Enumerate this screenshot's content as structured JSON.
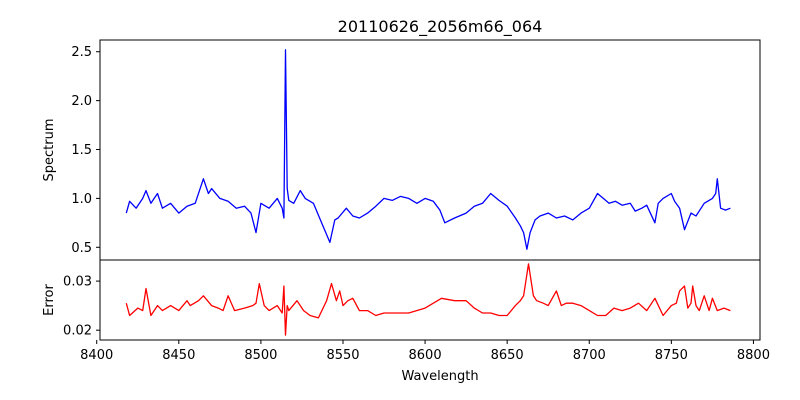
{
  "chart_data": [
    {
      "type": "line",
      "title": "20110626_2056m66_064",
      "xlabel": "",
      "ylabel": "Spectrum",
      "xlim": [
        8402,
        8804
      ],
      "ylim": [
        0.37,
        2.62
      ],
      "yticks": [
        0.5,
        1.0,
        1.5,
        2.0,
        2.5
      ],
      "ytick_labels": [
        "0.5",
        "1.0",
        "1.5",
        "2.0",
        "2.5"
      ],
      "series": [
        {
          "name": "Spectrum",
          "color": "#0000ff",
          "x": [
            8418,
            8420,
            8424,
            8428,
            8430,
            8433,
            8437,
            8440,
            8445,
            8450,
            8455,
            8460,
            8465,
            8468,
            8470,
            8475,
            8480,
            8485,
            8490,
            8494,
            8497,
            8500,
            8505,
            8510,
            8513,
            8514,
            8515,
            8516,
            8517,
            8520,
            8524,
            8527,
            8532,
            8537,
            8542,
            8545,
            8547,
            8552,
            8556,
            8560,
            8565,
            8570,
            8575,
            8580,
            8585,
            8590,
            8595,
            8600,
            8605,
            8609,
            8612,
            8618,
            8625,
            8630,
            8635,
            8640,
            8645,
            8650,
            8655,
            8658,
            8660,
            8662,
            8664,
            8667,
            8670,
            8675,
            8680,
            8685,
            8690,
            8695,
            8700,
            8705,
            8710,
            8712,
            8716,
            8720,
            8725,
            8728,
            8732,
            8735,
            8740,
            8742,
            8745,
            8750,
            8752,
            8755,
            8758,
            8762,
            8765,
            8770,
            8775,
            8777,
            8778,
            8780,
            8783,
            8786
          ],
          "y": [
            0.85,
            0.97,
            0.9,
            1.0,
            1.08,
            0.95,
            1.05,
            0.9,
            0.95,
            0.85,
            0.92,
            0.95,
            1.2,
            1.05,
            1.1,
            1.0,
            0.97,
            0.9,
            0.92,
            0.85,
            0.65,
            0.95,
            0.9,
            1.0,
            0.9,
            0.8,
            2.52,
            1.1,
            0.98,
            0.95,
            1.08,
            1.0,
            0.95,
            0.75,
            0.55,
            0.78,
            0.8,
            0.9,
            0.82,
            0.8,
            0.85,
            0.92,
            1.0,
            0.98,
            1.02,
            1.0,
            0.95,
            1.0,
            0.97,
            0.88,
            0.75,
            0.8,
            0.85,
            0.92,
            0.95,
            1.05,
            0.98,
            0.92,
            0.8,
            0.72,
            0.65,
            0.48,
            0.65,
            0.78,
            0.82,
            0.85,
            0.8,
            0.82,
            0.78,
            0.85,
            0.9,
            1.05,
            0.98,
            0.95,
            0.97,
            0.93,
            0.95,
            0.87,
            0.9,
            0.93,
            0.75,
            0.95,
            1.0,
            1.05,
            0.97,
            0.9,
            0.68,
            0.85,
            0.82,
            0.95,
            1.0,
            1.05,
            1.2,
            0.9,
            0.88,
            0.9
          ]
        }
      ]
    },
    {
      "type": "line",
      "xlabel": "Wavelength",
      "ylabel": "Error",
      "xlim": [
        8402,
        8804
      ],
      "ylim": [
        0.018,
        0.0343
      ],
      "xticks": [
        8400,
        8450,
        8500,
        8550,
        8600,
        8650,
        8700,
        8750,
        8800
      ],
      "xtick_labels": [
        "8400",
        "8450",
        "8500",
        "8550",
        "8600",
        "8650",
        "8700",
        "8750",
        "8800"
      ],
      "yticks": [
        0.02,
        0.03
      ],
      "ytick_labels": [
        "0.02",
        "0.03"
      ],
      "series": [
        {
          "name": "Error",
          "color": "#ff0000",
          "x": [
            8418,
            8420,
            8425,
            8428,
            8430,
            8433,
            8437,
            8440,
            8445,
            8450,
            8455,
            8457,
            8462,
            8465,
            8470,
            8474,
            8477,
            8480,
            8484,
            8490,
            8495,
            8497,
            8499,
            8502,
            8505,
            8510,
            8513,
            8514,
            8515,
            8516,
            8517,
            8522,
            8526,
            8530,
            8535,
            8540,
            8543,
            8546,
            8548,
            8550,
            8553,
            8556,
            8560,
            8565,
            8570,
            8575,
            8580,
            8590,
            8600,
            8610,
            8618,
            8625,
            8630,
            8635,
            8640,
            8645,
            8650,
            8655,
            8658,
            8660,
            8663,
            8666,
            8668,
            8672,
            8675,
            8680,
            8683,
            8686,
            8690,
            8695,
            8700,
            8705,
            8710,
            8715,
            8720,
            8725,
            8730,
            8735,
            8740,
            8745,
            8750,
            8753,
            8755,
            8758,
            8760,
            8762,
            8763,
            8765,
            8767,
            8770,
            8773,
            8775,
            8778,
            8782,
            8786
          ],
          "y": [
            0.0255,
            0.023,
            0.0245,
            0.024,
            0.0285,
            0.023,
            0.025,
            0.024,
            0.025,
            0.024,
            0.026,
            0.025,
            0.026,
            0.027,
            0.025,
            0.0245,
            0.024,
            0.027,
            0.024,
            0.0245,
            0.025,
            0.0255,
            0.0295,
            0.025,
            0.024,
            0.025,
            0.0235,
            0.029,
            0.019,
            0.025,
            0.024,
            0.026,
            0.024,
            0.023,
            0.0225,
            0.026,
            0.0295,
            0.026,
            0.028,
            0.025,
            0.026,
            0.0265,
            0.024,
            0.024,
            0.023,
            0.0235,
            0.0235,
            0.0235,
            0.0245,
            0.0265,
            0.026,
            0.026,
            0.0245,
            0.0235,
            0.0235,
            0.023,
            0.023,
            0.025,
            0.026,
            0.027,
            0.0335,
            0.027,
            0.026,
            0.0255,
            0.025,
            0.028,
            0.025,
            0.0255,
            0.0255,
            0.025,
            0.024,
            0.023,
            0.023,
            0.0245,
            0.024,
            0.0245,
            0.0255,
            0.024,
            0.0265,
            0.023,
            0.025,
            0.0255,
            0.028,
            0.029,
            0.0245,
            0.0255,
            0.029,
            0.025,
            0.024,
            0.027,
            0.024,
            0.0265,
            0.024,
            0.0245,
            0.024
          ]
        }
      ]
    }
  ]
}
